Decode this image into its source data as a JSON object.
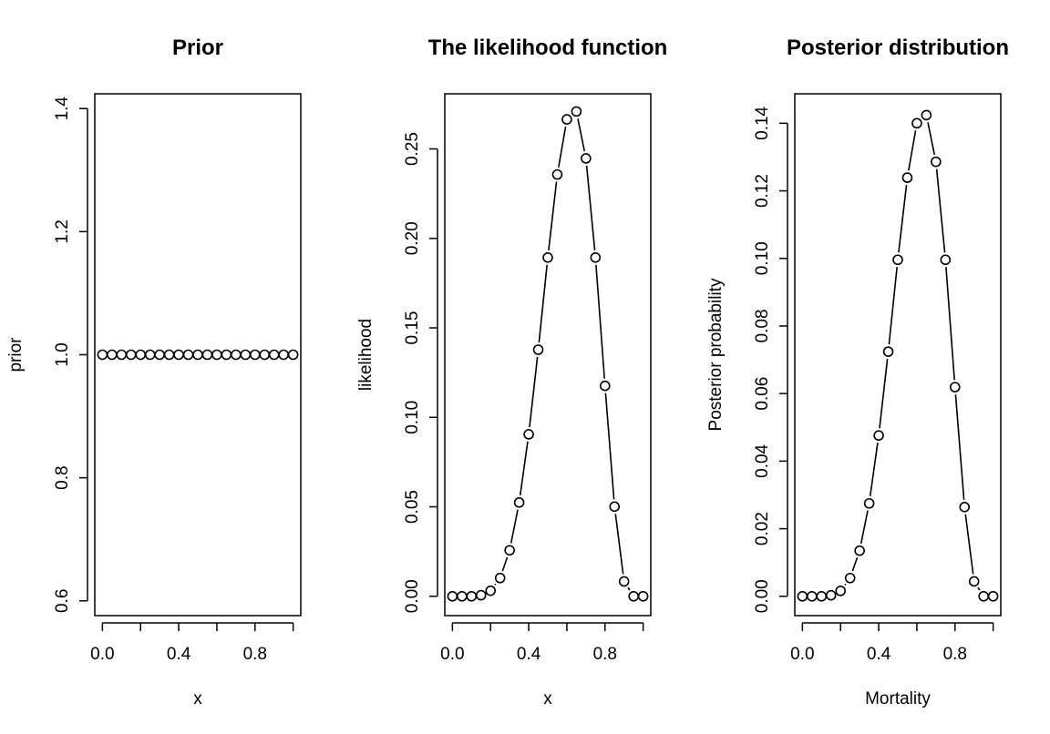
{
  "colors": {
    "ink": "#000000",
    "background": "#ffffff"
  },
  "chart_data": [
    {
      "type": "scatter",
      "title": "Prior",
      "xlabel": "x",
      "ylabel": "prior",
      "xlim": [
        -0.04,
        1.04
      ],
      "ylim": [
        0.576,
        1.424
      ],
      "xticks": [
        0.0,
        0.2,
        0.4,
        0.6,
        0.8,
        1.0
      ],
      "xtick_labels": [
        "0.0",
        "",
        "0.4",
        "",
        "0.8",
        ""
      ],
      "yticks": [
        0.6,
        0.8,
        1.0,
        1.2,
        1.4
      ],
      "ytick_labels": [
        "0.6",
        "0.8",
        "1.0",
        "1.2",
        "1.4"
      ],
      "connected": false,
      "marker": "open-circle",
      "series": [
        {
          "x": [
            0.0,
            0.05,
            0.1,
            0.15,
            0.2,
            0.25,
            0.3,
            0.35,
            0.4,
            0.45,
            0.5,
            0.55,
            0.6,
            0.65,
            0.7,
            0.75,
            0.8,
            0.85,
            0.9,
            0.95,
            1.0
          ],
          "y": [
            1,
            1,
            1,
            1,
            1,
            1,
            1,
            1,
            1,
            1,
            1,
            1,
            1,
            1,
            1,
            1,
            1,
            1,
            1,
            1,
            1
          ]
        }
      ]
    },
    {
      "type": "line",
      "title": "The likelihood function",
      "xlabel": "x",
      "ylabel": "likelihood",
      "xlim": [
        -0.04,
        1.04
      ],
      "ylim": [
        -0.0108,
        0.2808
      ],
      "xticks": [
        0.0,
        0.2,
        0.4,
        0.6,
        0.8,
        1.0
      ],
      "xtick_labels": [
        "0.0",
        "",
        "0.4",
        "",
        "0.8",
        ""
      ],
      "yticks": [
        0.0,
        0.05,
        0.1,
        0.15,
        0.2,
        0.25
      ],
      "ytick_labels": [
        "0.00",
        "0.05",
        "0.10",
        "0.15",
        "0.20",
        "0.25"
      ],
      "connected": true,
      "marker": "open-circle",
      "series": [
        {
          "x": [
            0.0,
            0.05,
            0.1,
            0.15,
            0.2,
            0.25,
            0.3,
            0.35,
            0.4,
            0.45,
            0.5,
            0.55,
            0.6,
            0.65,
            0.7,
            0.75,
            0.8,
            0.85,
            0.9,
            0.95,
            1.0
          ],
          "y": [
            0.0,
            0.0,
            0.0,
            0.0006,
            0.0031,
            0.0102,
            0.0257,
            0.0524,
            0.0905,
            0.1378,
            0.1893,
            0.2357,
            0.2665,
            0.2709,
            0.2447,
            0.1893,
            0.1176,
            0.0501,
            0.0083,
            0.0,
            0.0
          ]
        }
      ]
    },
    {
      "type": "line",
      "title": "Posterior distribution",
      "xlabel": "Mortality",
      "ylabel": "Posterior probability",
      "xlim": [
        -0.04,
        1.04
      ],
      "ylim": [
        -0.00572,
        0.14872
      ],
      "xticks": [
        0.0,
        0.2,
        0.4,
        0.6,
        0.8,
        1.0
      ],
      "xtick_labels": [
        "0.0",
        "",
        "0.4",
        "",
        "0.8",
        ""
      ],
      "yticks": [
        0.0,
        0.02,
        0.04,
        0.06,
        0.08,
        0.1,
        0.12,
        0.14
      ],
      "ytick_labels": [
        "0.00",
        "0.02",
        "0.04",
        "0.06",
        "0.08",
        "0.10",
        "0.12",
        "0.14"
      ],
      "connected": true,
      "marker": "open-circle",
      "series": [
        {
          "x": [
            0.0,
            0.05,
            0.1,
            0.15,
            0.2,
            0.25,
            0.3,
            0.35,
            0.4,
            0.45,
            0.5,
            0.55,
            0.6,
            0.65,
            0.7,
            0.75,
            0.8,
            0.85,
            0.9,
            0.95,
            1.0
          ],
          "y": [
            0.0,
            0.0,
            0.0,
            0.0003,
            0.0016,
            0.0054,
            0.0135,
            0.0275,
            0.0476,
            0.0724,
            0.0996,
            0.1239,
            0.14,
            0.1424,
            0.1286,
            0.0996,
            0.0619,
            0.0264,
            0.0044,
            0.0,
            0.0
          ]
        }
      ]
    }
  ]
}
